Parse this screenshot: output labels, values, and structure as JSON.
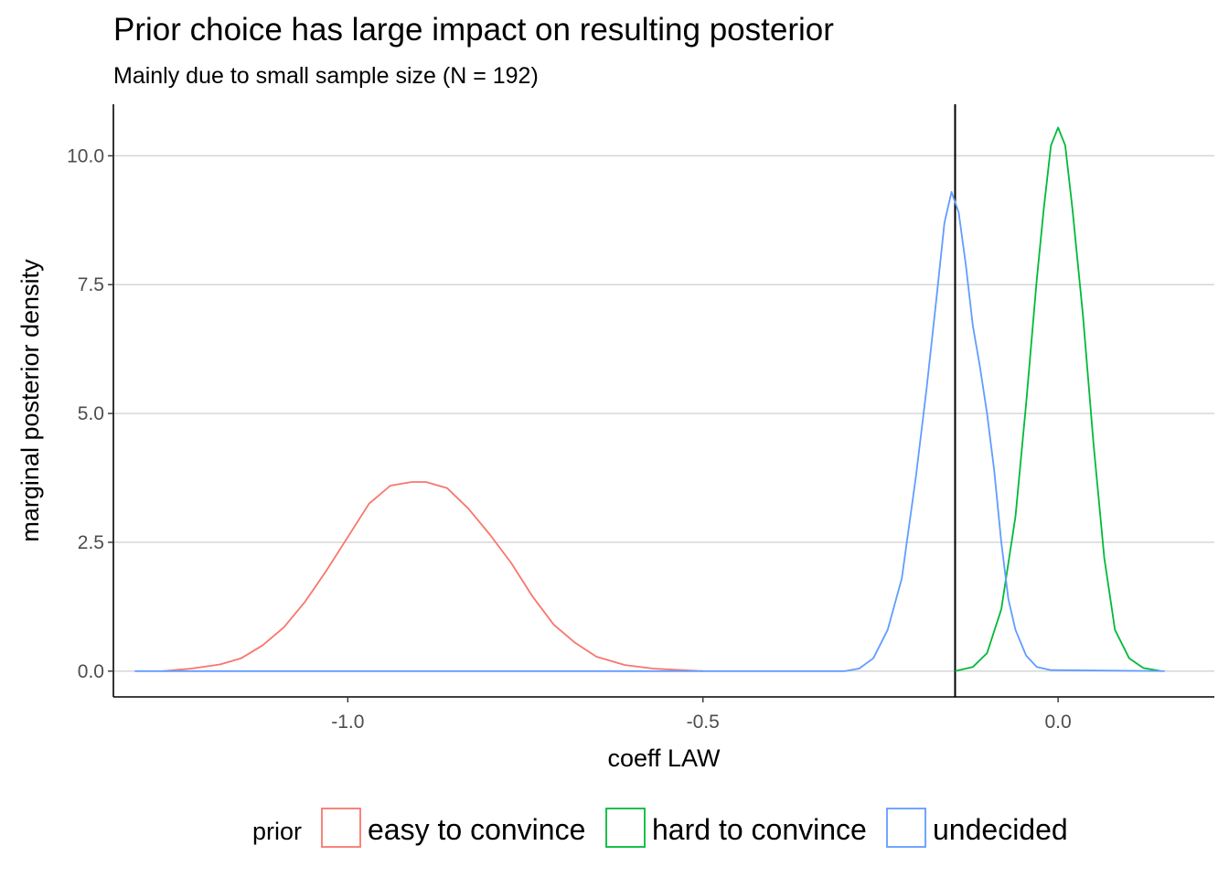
{
  "chart_data": {
    "type": "line",
    "title": "Prior choice has large impact on resulting posterior",
    "subtitle": "Mainly due to small sample size (N = 192)",
    "xlabel": "coeff LAW",
    "ylabel": "marginal posterior density",
    "xlim": [
      -1.33,
      0.22
    ],
    "ylim": [
      -0.5,
      11.0
    ],
    "x_ticks": [
      -1.0,
      -0.5,
      0.0
    ],
    "x_tick_labels": [
      "-1.0",
      "-0.5",
      "0.0"
    ],
    "y_ticks": [
      0.0,
      2.5,
      5.0,
      7.5,
      10.0
    ],
    "y_tick_labels": [
      "0.0",
      "2.5",
      "5.0",
      "7.5",
      "10.0"
    ],
    "grid": "horizontal major",
    "vline": {
      "x": -0.145,
      "color": "#000000"
    },
    "legend": {
      "title": "prior",
      "position": "bottom"
    },
    "series": [
      {
        "name": "easy to convince",
        "color": "#F8766D",
        "x": [
          -1.26,
          -1.22,
          -1.18,
          -1.15,
          -1.12,
          -1.09,
          -1.06,
          -1.03,
          -1.0,
          -0.97,
          -0.94,
          -0.91,
          -0.89,
          -0.86,
          -0.83,
          -0.8,
          -0.77,
          -0.74,
          -0.71,
          -0.68,
          -0.65,
          -0.61,
          -0.57,
          -0.53,
          -0.5
        ],
        "y": [
          0.0,
          0.05,
          0.13,
          0.25,
          0.5,
          0.85,
          1.35,
          1.95,
          2.6,
          3.25,
          3.6,
          3.67,
          3.67,
          3.55,
          3.15,
          2.65,
          2.1,
          1.45,
          0.9,
          0.55,
          0.28,
          0.12,
          0.05,
          0.02,
          0.0
        ]
      },
      {
        "name": "hard to convince",
        "color": "#00BA38",
        "x": [
          -0.145,
          -0.12,
          -0.1,
          -0.08,
          -0.06,
          -0.045,
          -0.03,
          -0.02,
          -0.01,
          0.0,
          0.01,
          0.02,
          0.035,
          0.05,
          0.065,
          0.08,
          0.1,
          0.12,
          0.145
        ],
        "y": [
          0.0,
          0.08,
          0.35,
          1.2,
          3.0,
          5.2,
          7.6,
          9.0,
          10.2,
          10.55,
          10.2,
          9.0,
          6.9,
          4.4,
          2.2,
          0.8,
          0.25,
          0.06,
          0.0
        ]
      },
      {
        "name": "undecided",
        "color": "#619CFF",
        "x": [
          -1.3,
          -0.3,
          -0.28,
          -0.26,
          -0.24,
          -0.22,
          -0.2,
          -0.185,
          -0.17,
          -0.16,
          -0.15,
          -0.14,
          -0.13,
          -0.12,
          -0.11,
          -0.1,
          -0.09,
          -0.08,
          -0.07,
          -0.06,
          -0.045,
          -0.03,
          -0.01,
          0.15
        ],
        "y": [
          0.0,
          0.0,
          0.05,
          0.25,
          0.8,
          1.8,
          3.8,
          5.5,
          7.4,
          8.7,
          9.3,
          8.9,
          7.9,
          6.7,
          5.9,
          5.0,
          3.9,
          2.5,
          1.4,
          0.8,
          0.3,
          0.08,
          0.02,
          0.0
        ]
      }
    ]
  }
}
